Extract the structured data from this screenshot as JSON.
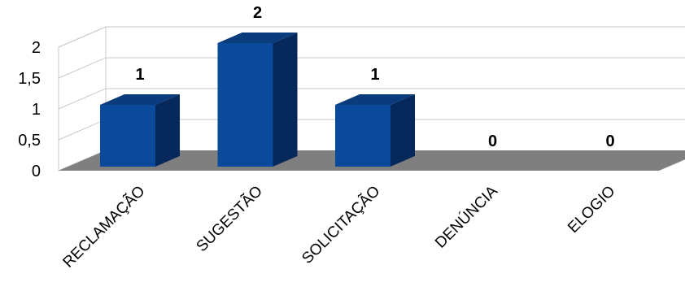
{
  "chart_data": {
    "type": "bar",
    "categories": [
      "RECLAMAÇÃO",
      "SUGESTÃO",
      "SOLICITAÇÃO",
      "DENÚNCIA",
      "ELOGIO"
    ],
    "values": [
      1,
      2,
      1,
      0,
      0
    ],
    "data_labels": [
      "1",
      "2",
      "1",
      "0",
      "0"
    ],
    "y_ticks": [
      "0",
      "0,5",
      "1",
      "1,5",
      "2"
    ],
    "ylim": [
      0,
      2
    ],
    "grid": true,
    "style": "3d-column",
    "colors": {
      "bar_front": "#0b4a9a",
      "bar_side": "#06285a",
      "bar_top": "#0a3b7d",
      "floor": "#7f7f7f",
      "grid": "#c8c8c8"
    }
  }
}
